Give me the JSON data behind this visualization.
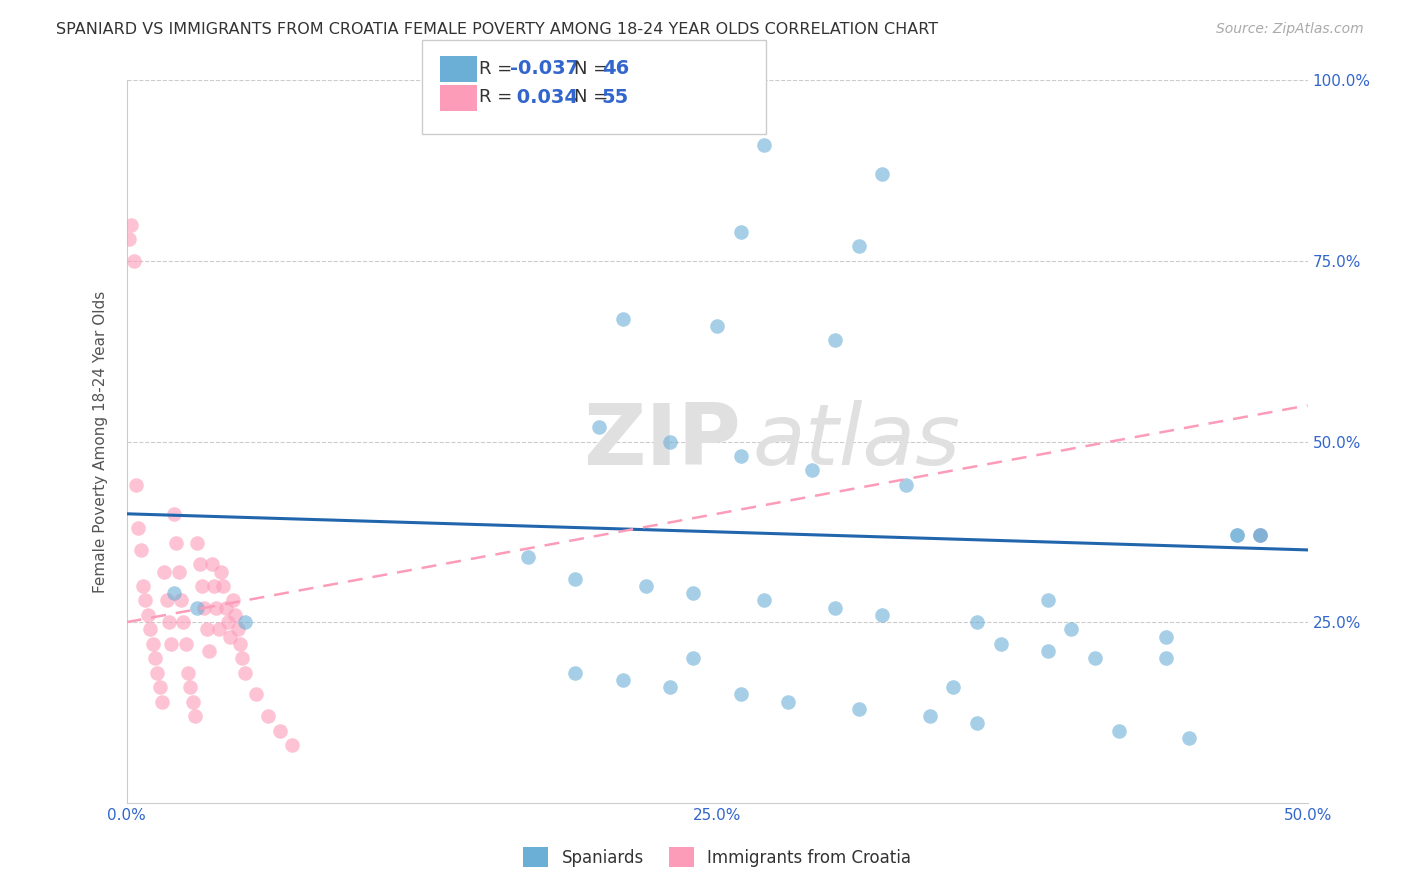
{
  "title": "SPANIARD VS IMMIGRANTS FROM CROATIA FEMALE POVERTY AMONG 18-24 YEAR OLDS CORRELATION CHART",
  "source": "Source: ZipAtlas.com",
  "ylabel": "Female Poverty Among 18-24 Year Olds",
  "xlim": [
    0.0,
    0.5
  ],
  "ylim": [
    0.0,
    1.0
  ],
  "spaniards_color": "#6baed6",
  "croatia_color": "#fc9cb9",
  "spaniards_R": -0.037,
  "spaniards_N": 46,
  "croatia_R": 0.034,
  "croatia_N": 55,
  "watermark_part1": "ZIP",
  "watermark_part2": "atlas",
  "legend_labels": [
    "Spaniards",
    "Immigrants from Croatia"
  ],
  "spaniards_x": [
    0.27,
    0.32,
    0.26,
    0.31,
    0.21,
    0.25,
    0.3,
    0.2,
    0.23,
    0.26,
    0.29,
    0.33,
    0.17,
    0.19,
    0.22,
    0.24,
    0.27,
    0.3,
    0.32,
    0.36,
    0.4,
    0.44,
    0.47,
    0.37,
    0.39,
    0.41,
    0.44,
    0.47,
    0.19,
    0.21,
    0.23,
    0.26,
    0.28,
    0.31,
    0.34,
    0.36,
    0.39,
    0.42,
    0.45,
    0.48,
    0.02,
    0.03,
    0.05,
    0.24,
    0.35,
    0.48
  ],
  "spaniards_y": [
    0.91,
    0.87,
    0.79,
    0.77,
    0.67,
    0.66,
    0.64,
    0.52,
    0.5,
    0.48,
    0.46,
    0.44,
    0.34,
    0.31,
    0.3,
    0.29,
    0.28,
    0.27,
    0.26,
    0.25,
    0.24,
    0.23,
    0.37,
    0.22,
    0.21,
    0.2,
    0.2,
    0.37,
    0.18,
    0.17,
    0.16,
    0.15,
    0.14,
    0.13,
    0.12,
    0.11,
    0.28,
    0.1,
    0.09,
    0.37,
    0.29,
    0.27,
    0.25,
    0.2,
    0.16,
    0.37
  ],
  "croatia_x": [
    0.002,
    0.003,
    0.004,
    0.005,
    0.006,
    0.007,
    0.008,
    0.009,
    0.01,
    0.011,
    0.012,
    0.013,
    0.014,
    0.015,
    0.016,
    0.017,
    0.018,
    0.019,
    0.02,
    0.021,
    0.022,
    0.023,
    0.024,
    0.025,
    0.026,
    0.027,
    0.028,
    0.029,
    0.03,
    0.031,
    0.032,
    0.033,
    0.034,
    0.035,
    0.036,
    0.037,
    0.038,
    0.039,
    0.04,
    0.041,
    0.042,
    0.043,
    0.044,
    0.045,
    0.046,
    0.047,
    0.048,
    0.049,
    0.05,
    0.055,
    0.06,
    0.065,
    0.07,
    0.48,
    0.001
  ],
  "croatia_y": [
    0.8,
    0.75,
    0.44,
    0.38,
    0.35,
    0.3,
    0.28,
    0.26,
    0.24,
    0.22,
    0.2,
    0.18,
    0.16,
    0.14,
    0.32,
    0.28,
    0.25,
    0.22,
    0.4,
    0.36,
    0.32,
    0.28,
    0.25,
    0.22,
    0.18,
    0.16,
    0.14,
    0.12,
    0.36,
    0.33,
    0.3,
    0.27,
    0.24,
    0.21,
    0.33,
    0.3,
    0.27,
    0.24,
    0.32,
    0.3,
    0.27,
    0.25,
    0.23,
    0.28,
    0.26,
    0.24,
    0.22,
    0.2,
    0.18,
    0.15,
    0.12,
    0.1,
    0.08,
    0.37,
    0.78
  ],
  "blue_line_x": [
    0.0,
    0.5
  ],
  "blue_line_y": [
    0.4,
    0.35
  ],
  "pink_line_x": [
    0.0,
    0.5
  ],
  "pink_line_y": [
    0.25,
    0.55
  ]
}
